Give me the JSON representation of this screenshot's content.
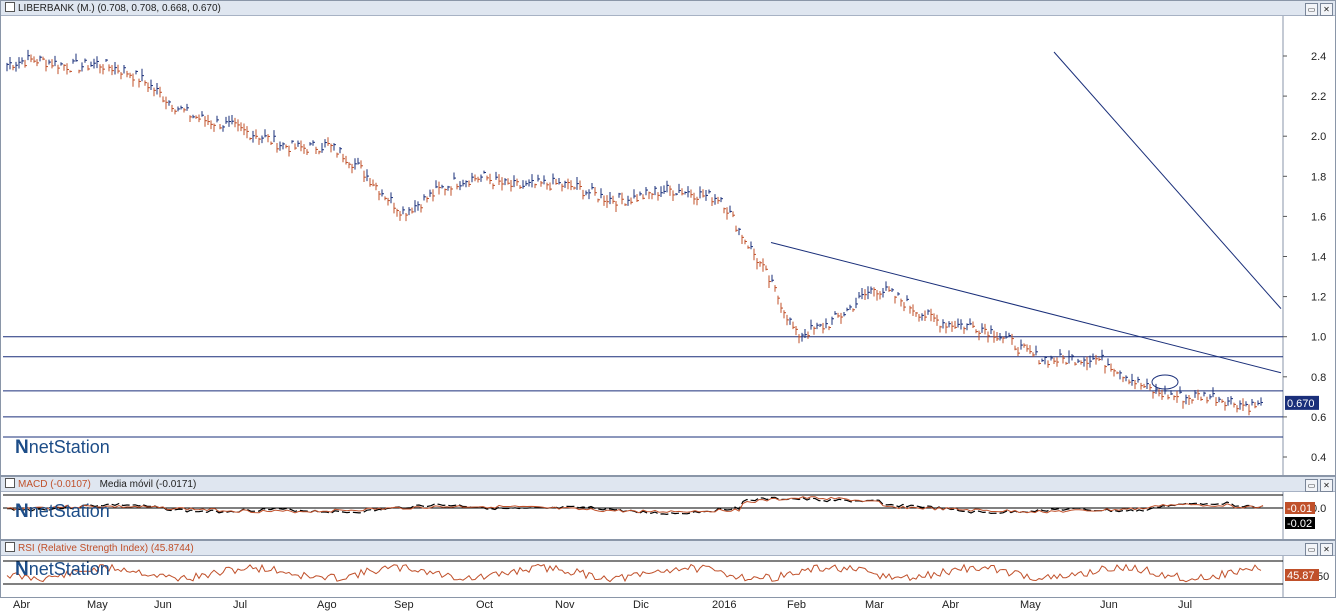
{
  "main": {
    "title": "LIBERBANK (M.) (0.708, 0.708, 0.668, 0.670)",
    "last_value": "0.670",
    "y_ticks": [
      "2.4",
      "2.2",
      "2.0",
      "1.8",
      "1.6",
      "1.4",
      "1.2",
      "1.0",
      "0.8",
      "0.6",
      "0.4"
    ]
  },
  "macd": {
    "title_macd": "MACD (-0.0107)",
    "title_ma": "Media móvil (-0.0171)",
    "y_tick": "0.0",
    "badge_macd": "-0.01",
    "badge_ma": "-0.02"
  },
  "rsi": {
    "title": "RSI (Relative Strength Index) (45.8744)",
    "y_tick": "50",
    "badge": "45.87"
  },
  "logo": {
    "n": "N",
    "text": "netStation"
  },
  "months": [
    "Abr",
    "May",
    "Jun",
    "Jul",
    "Ago",
    "Sep",
    "Oct",
    "Nov",
    "Dic",
    "2016",
    "Feb",
    "Mar",
    "Abr",
    "May",
    "Jun",
    "Jul"
  ],
  "colors": {
    "up": "#1a2f7a",
    "down": "#c0502a",
    "trend": "#1a2f7a",
    "macd": "#c0502a",
    "ma": "#000000",
    "badge_price": "#1a2f7a",
    "badge_macd": "#c0502a"
  },
  "chart_data": {
    "type": "line",
    "title": "LIBERBANK (M.) (0.708, 0.708, 0.668, 0.670)",
    "ylim": [
      0.4,
      2.5
    ],
    "x": [
      "Abr",
      "May",
      "Jun",
      "Jul",
      "Ago",
      "Sep",
      "Oct",
      "Nov",
      "Dic",
      "2016",
      "Feb",
      "Mar",
      "Abr",
      "May",
      "Jun",
      "Jul"
    ],
    "series": [
      {
        "values": [
          2.35,
          2.38,
          2.2,
          2.0,
          1.95,
          1.65,
          1.8,
          1.73,
          1.7,
          1.72,
          1.0,
          1.22,
          1.08,
          0.93,
          0.85,
          0.68
        ]
      }
    ],
    "horizontal_levels": [
      1.0,
      0.9,
      0.73,
      0.6,
      0.5
    ],
    "trendlines": [
      {
        "from": [
          "May",
          2.42
        ],
        "to": [
          "Jul",
          1.14
        ]
      },
      {
        "from": [
          "2016",
          1.47
        ],
        "to": [
          "Jul",
          0.82
        ]
      }
    ]
  }
}
